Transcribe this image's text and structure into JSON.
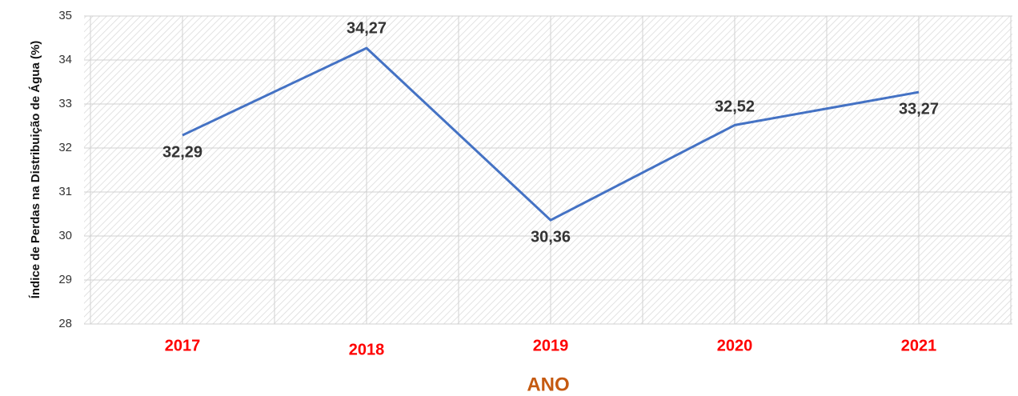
{
  "chart_data": {
    "type": "line",
    "y_label": "Índice de Perdas na Distribuição de Água (%)",
    "x_label": "ANO",
    "categories": [
      "2017",
      "2018",
      "2019",
      "2020",
      "2021"
    ],
    "values": [
      32.29,
      34.27,
      30.36,
      32.52,
      33.27
    ],
    "value_labels": [
      "32,29",
      "34,27",
      "30,36",
      "32,52",
      "33,27"
    ],
    "color": "#4472c4",
    "ylim": [
      28,
      35
    ],
    "yticks": [
      28,
      29,
      30,
      31,
      32,
      33,
      34,
      35
    ],
    "grid": true
  }
}
